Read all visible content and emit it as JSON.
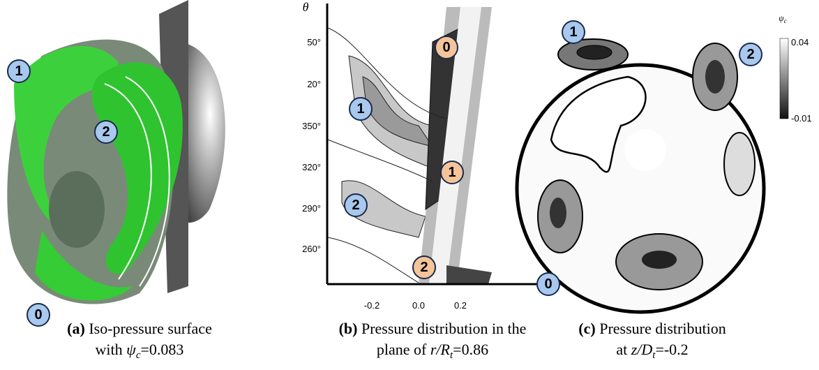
{
  "panels": [
    {
      "label": "(a)",
      "caption": [
        "Iso-pressure surface",
        {
          "prefix": "with ",
          "symbol": "ψ",
          "sub": "c",
          "suffix": "=0.083"
        }
      ],
      "markers": [
        "1",
        "2",
        "0"
      ]
    },
    {
      "label": "(b)",
      "caption": [
        "Pressure distribution in the",
        {
          "prefix": "plane of ",
          "symbol": "r/R",
          "sub": "t",
          "suffix": "=0.86"
        }
      ],
      "axis_label": "θ",
      "yticks": [
        "50°",
        "20°",
        "350°",
        "320°",
        "290°",
        "260°"
      ],
      "xticks": [
        "-0.2",
        "0.0",
        "0.2"
      ],
      "markers_blue": [
        "1",
        "2"
      ],
      "markers_orange": [
        "0",
        "1",
        "2"
      ]
    },
    {
      "label": "(c)",
      "caption": [
        "Pressure distribution",
        {
          "prefix": "at ",
          "symbol": "z/D",
          "sub": "t",
          "suffix": "=-0.2"
        }
      ],
      "markers": [
        "1",
        "2",
        "0"
      ],
      "colorbar": {
        "symbol": "ψ",
        "sub": "c",
        "max": "0.04",
        "min": "-0.01"
      }
    }
  ]
}
